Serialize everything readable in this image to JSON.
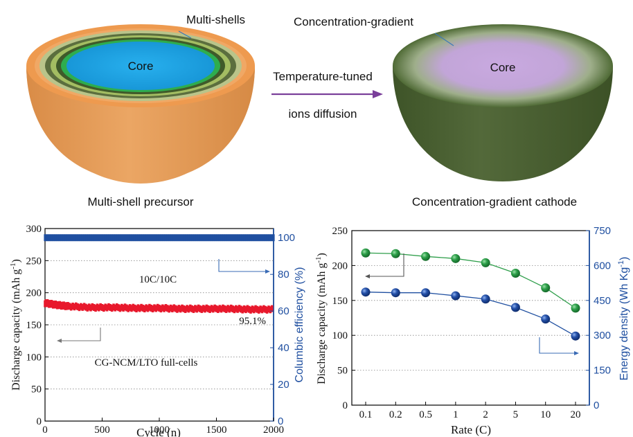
{
  "schematic": {
    "left_label": "Multi-shell precursor",
    "left_core": "Core",
    "left_callout": "Multi-shells",
    "arrow_top": "Temperature-tuned",
    "arrow_bottom": "ions diffusion",
    "right_label": "Concentration-gradient cathode",
    "right_core": "Core",
    "right_callout": "Concentration-gradient"
  },
  "colors": {
    "shell_outer": "#E8A35C",
    "shell_body": "#E59A55",
    "green_dark": "#4A5E2E",
    "green_light": "#A8C06A",
    "green_bright": "#2EAF4B",
    "core_blue": "#1FA6E6",
    "cg_body": "#4B6131",
    "cg_core": "#C8A8DE",
    "arrow": "#7A3F9A",
    "red_series": "#E8192C",
    "blue_series": "#1F4FA0",
    "green_series": "#2E9E4A"
  },
  "chart_data": [
    {
      "type": "scatter",
      "xlabel": "Cycle (n)",
      "ylabel": "Discharge capacity (mAh g",
      "ylabel_sup": "-1",
      "ylabel_end": ")",
      "y2label": "Columbic efficiency (%)",
      "xlim": [
        0,
        2000
      ],
      "ylim": [
        0,
        300
      ],
      "y2lim": [
        0,
        105
      ],
      "xticks": [
        "0",
        "500",
        "1000",
        "1500",
        "2000"
      ],
      "yticks": [
        "0",
        "50",
        "100",
        "150",
        "200",
        "250",
        "300"
      ],
      "y2ticks": [
        "0",
        "20",
        "40",
        "60",
        "80",
        "100"
      ],
      "annotations": {
        "rate": "10C/10C",
        "retention": "95.1%",
        "cell": "CG-NCM/LTO full-cells"
      },
      "grid": "dotted horizontal",
      "series": [
        {
          "axis": "left",
          "color": "red",
          "x": [
            0,
            100,
            200,
            400,
            600,
            800,
            1000,
            1200,
            1400,
            1600,
            1800,
            2000
          ],
          "values": [
            184,
            181,
            179,
            177,
            177,
            176,
            176,
            175,
            175,
            175,
            174,
            174
          ]
        },
        {
          "axis": "right",
          "color": "blue",
          "x": [
            0,
            500,
            1000,
            1500,
            2000
          ],
          "values": [
            100,
            100,
            100,
            100,
            100
          ]
        }
      ]
    },
    {
      "type": "line",
      "xlabel": "Rate (C)",
      "ylabel": "Discharge capacity (mAh g",
      "ylabel_sup": "-1",
      "ylabel_end": ")",
      "y2label": "Energy density (Wh Kg",
      "y2label_sup": "-1",
      "y2label_end": ")",
      "categories": [
        "0.1",
        "0.2",
        "0.5",
        "1",
        "2",
        "5",
        "10",
        "20"
      ],
      "ylim": [
        0,
        250
      ],
      "y2lim": [
        0,
        750
      ],
      "yticks": [
        "0",
        "50",
        "100",
        "150",
        "200",
        "250"
      ],
      "y2ticks": [
        "0",
        "150",
        "300",
        "450",
        "600",
        "750"
      ],
      "grid": "dotted horizontal",
      "series": [
        {
          "axis": "left",
          "color": "green",
          "values": [
            218,
            217,
            213,
            210,
            204,
            189,
            168,
            139
          ]
        },
        {
          "axis": "right",
          "color": "blue",
          "values": [
            486,
            483,
            483,
            470,
            456,
            420,
            370,
            297
          ]
        }
      ]
    }
  ]
}
